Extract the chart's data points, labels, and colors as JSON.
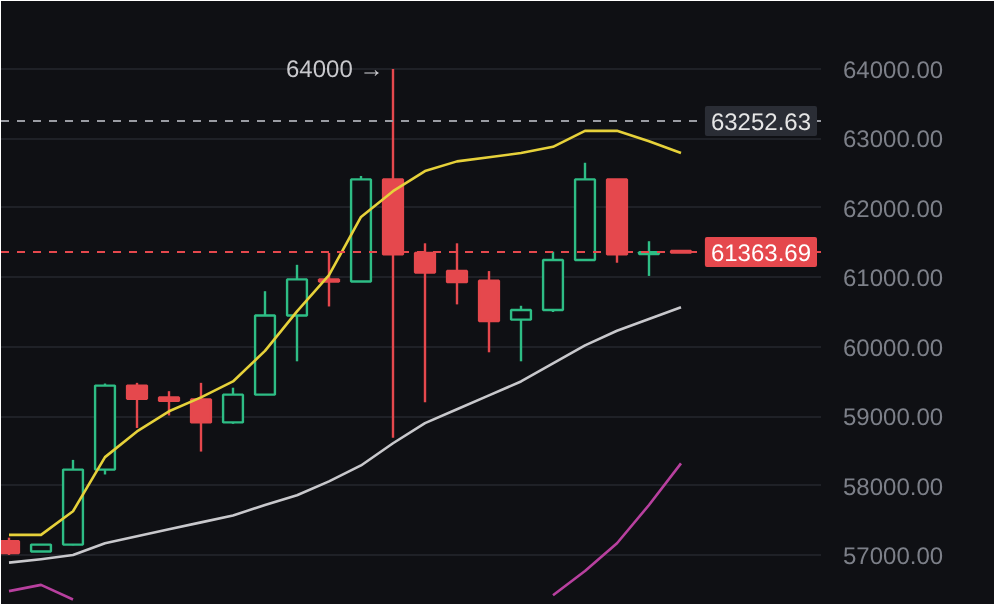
{
  "chart_data": {
    "type": "candlestick",
    "categories": [
      null,
      null,
      null,
      null,
      null,
      null,
      null,
      null,
      null,
      null,
      null,
      null,
      null,
      null,
      null,
      null,
      null,
      null,
      null,
      null,
      null,
      null
    ],
    "ohlc": [
      [
        57200,
        57250,
        57000,
        57030
      ],
      [
        57050,
        57150,
        57050,
        57150
      ],
      [
        57150,
        58370,
        57140,
        58230
      ],
      [
        58230,
        59470,
        58160,
        59440
      ],
      [
        59440,
        59480,
        58830,
        59250
      ],
      [
        59270,
        59360,
        59010,
        59220
      ],
      [
        59240,
        59480,
        58490,
        58910
      ],
      [
        58910,
        59410,
        58890,
        59310
      ],
      [
        59310,
        60800,
        59310,
        60450
      ],
      [
        60450,
        61180,
        59790,
        60970
      ],
      [
        60970,
        61350,
        60580,
        60940
      ],
      [
        60940,
        62460,
        60940,
        62410
      ],
      [
        62410,
        64000,
        58690,
        61330
      ],
      [
        61350,
        61490,
        59200,
        61070
      ],
      [
        61090,
        61490,
        60610,
        60930
      ],
      [
        60950,
        61090,
        59920,
        60370
      ],
      [
        60390,
        60590,
        59790,
        60530
      ],
      [
        60530,
        61370,
        60500,
        61250
      ],
      [
        61250,
        62650,
        61250,
        62410
      ],
      [
        62410,
        62410,
        61210,
        61330
      ],
      [
        61340,
        61520,
        61020,
        61360
      ],
      [
        61380,
        61390,
        61350,
        61364
      ]
    ],
    "colors": [
      "#e5484d",
      "#2ebd85",
      "#2ebd85",
      "#2ebd85",
      "#e5484d",
      "#e5484d",
      "#e5484d",
      "#2ebd85",
      "#2ebd85",
      "#2ebd85",
      "#e5484d",
      "#2ebd85",
      "#e5484d",
      "#e5484d",
      "#e5484d",
      "#e5484d",
      "#2ebd85",
      "#2ebd85",
      "#2ebd85",
      "#e5484d",
      "#2ebd85",
      "#e5484d"
    ],
    "series": [
      {
        "type": "line",
        "color": "#e6d13a",
        "values": [
          57290,
          57290,
          57630,
          58410,
          58780,
          59070,
          59270,
          59500,
          59940,
          60510,
          61030,
          61870,
          62240,
          62530,
          62670,
          62730,
          62790,
          62880,
          63110,
          63110,
          62960,
          62790
        ]
      },
      {
        "type": "line",
        "color": "#c8c8cc",
        "values": [
          56890,
          56940,
          57000,
          57170,
          57270,
          57370,
          57470,
          57570,
          57720,
          57860,
          58060,
          58290,
          58610,
          58900,
          59100,
          59300,
          59500,
          59760,
          60020,
          60230,
          60400,
          60570
        ]
      },
      {
        "type": "line",
        "color": "#b8409f",
        "values": [
          56480,
          56570,
          56360,
          null,
          null,
          null,
          null,
          null,
          null,
          null,
          null,
          null,
          null,
          null,
          null,
          null,
          null,
          56420,
          56770,
          57170,
          57720,
          58320
        ]
      }
    ],
    "ylim": [
      56280,
      64980
    ],
    "yticks": [
      {
        "value": 57000,
        "label": "57000.00"
      },
      {
        "value": 58000,
        "label": "58000.00"
      },
      {
        "value": 59000,
        "label": "59000.00"
      },
      {
        "value": 60000,
        "label": "60000.00"
      },
      {
        "value": 61000,
        "label": "61000.00"
      },
      {
        "value": 62000,
        "label": "62000.00"
      },
      {
        "value": 63000,
        "label": "63000.00"
      },
      {
        "value": 64000,
        "label": "64000.00"
      }
    ],
    "ref_lines": [
      {
        "axis": "y",
        "value": 63252.63,
        "label": "63252.63",
        "color": "#9a9ca3",
        "line_style": "dashed"
      },
      {
        "axis": "y",
        "value": 61363.69,
        "label": "61363.69",
        "color": "#e5484d",
        "line_style": "dashed"
      }
    ],
    "annotations": [
      "64000 →"
    ],
    "grid": "y",
    "tick_labels": "y"
  }
}
